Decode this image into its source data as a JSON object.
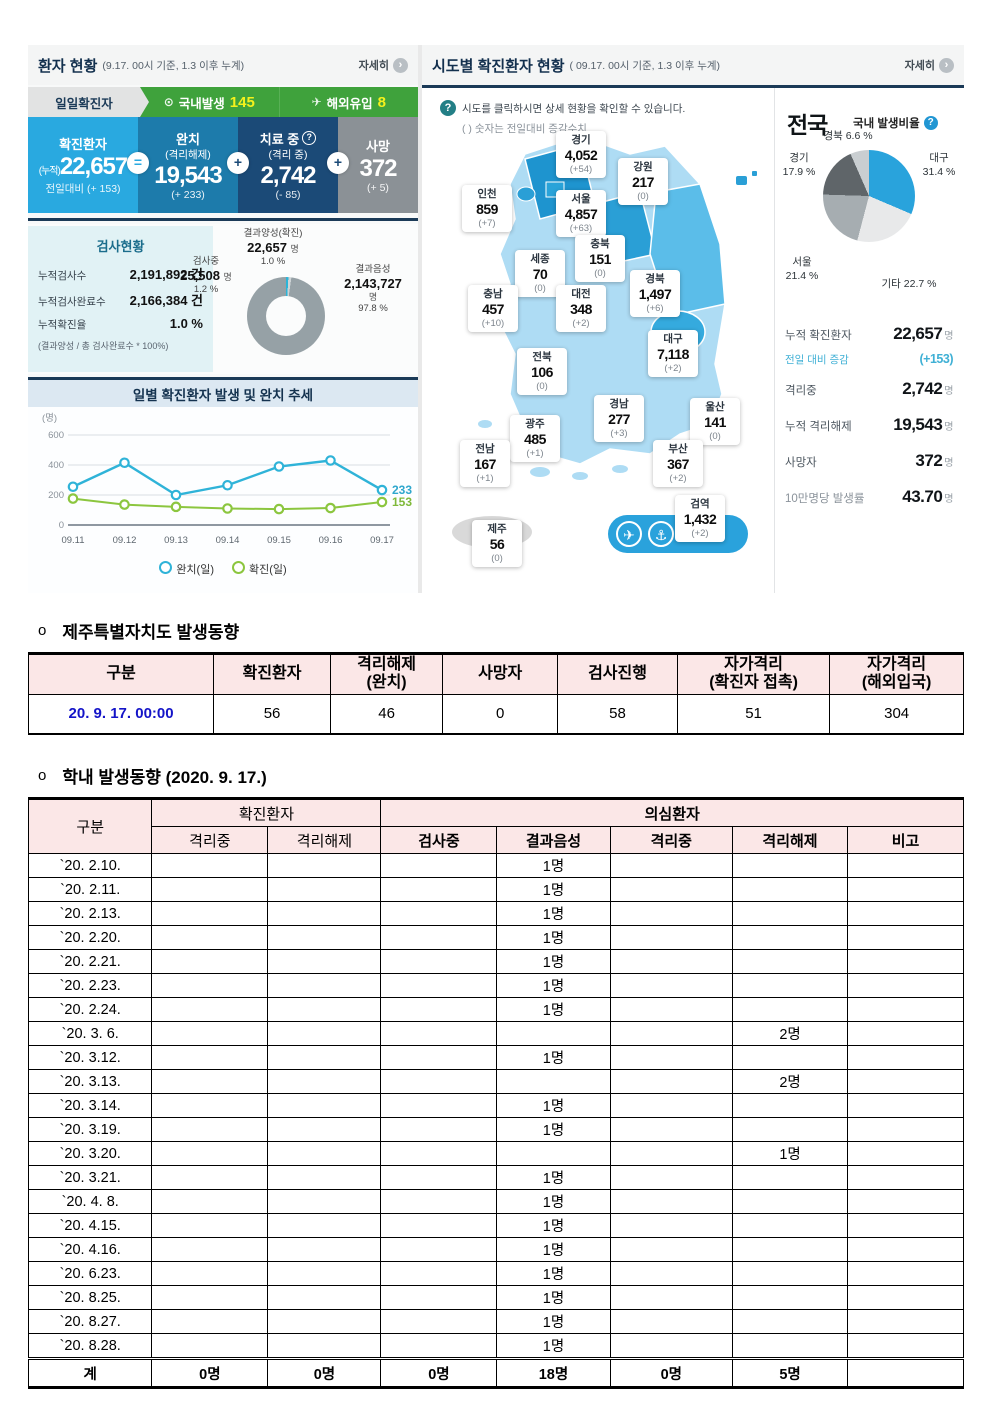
{
  "left_panel": {
    "title": "환자 현황",
    "title_note": "(9.17. 00시 기준, 1.3 이후 누계)",
    "more_label": "자세히",
    "icons": {
      "more_arrow": "›",
      "pin": "⊙",
      "plane": "✈",
      "help": "?"
    },
    "tabs": {
      "daily": "일일확진자",
      "domestic_label": "국내발생",
      "domestic_value": "145",
      "imported_label": "해외유입",
      "imported_value": "8"
    },
    "cards": {
      "confirmed": {
        "title": "확진환자",
        "prefix": "(누적)",
        "value": "22,657",
        "delta": "전일대비 (+ 153)"
      },
      "recovered": {
        "title": "완치",
        "subtitle": "(격리해제)",
        "value": "19,543",
        "delta": "(+ 233)"
      },
      "treating": {
        "title": "치료 중",
        "help": "?",
        "subtitle": "(격리 중)",
        "value": "2,742",
        "delta": "(- 85)"
      },
      "deaths": {
        "title": "사망",
        "value": "372",
        "delta": "(+ 5)"
      },
      "op_equals": "=",
      "op_plus": "+"
    },
    "tests": {
      "title": "검사현황",
      "rows": [
        {
          "label": "누적검사수",
          "value": "2,191,892 건"
        },
        {
          "label": "누적검사완료수",
          "value": "2,166,384 건"
        },
        {
          "label": "누적확진율",
          "value": "1.0 %"
        }
      ],
      "note": "(결과양성 / 총 검사완료수 * 100%)",
      "donut": {
        "positive_label": "결과양성(확진)",
        "positive_value": "22,657",
        "positive_unit": "명",
        "positive_pct": "1.0 %",
        "testing_label": "검사중",
        "testing_value": "25,508",
        "testing_unit": "명",
        "testing_pct": "1.2 %",
        "negative_label": "결과음성",
        "negative_value": "2,143,727",
        "negative_unit": "명",
        "negative_pct": "97.8 %"
      }
    },
    "trend": {
      "title": "일별 확진환자 발생 및 완치 추세",
      "unit": "(명)",
      "y_ticks": [
        "600",
        "400",
        "200",
        "0"
      ],
      "x_labels": [
        "09.11",
        "09.12",
        "09.13",
        "09.14",
        "09.15",
        "09.16",
        "09.17"
      ],
      "recovered_end_label": "233",
      "confirmed_end_label": "153",
      "legend_recovered": "완치(일)",
      "legend_confirmed": "확진(일)"
    }
  },
  "map_panel": {
    "title": "시도별 확진환자 현황",
    "title_note": "( 09.17. 00시 기준, 1.3 이후 누계)",
    "more_label": "자세히",
    "help_text": "시도를 클릭하시면 상세 현황을 확인할 수 있습니다.",
    "help_note": "( ) 숫자는 전일대비 증감수치",
    "regions": [
      {
        "name": "경기",
        "value": "4,052",
        "delta": "(+54)"
      },
      {
        "name": "강원",
        "value": "217",
        "delta": "(0)"
      },
      {
        "name": "인천",
        "value": "859",
        "delta": "(+7)"
      },
      {
        "name": "서울",
        "value": "4,857",
        "delta": "(+63)"
      },
      {
        "name": "충북",
        "value": "151",
        "delta": "(0)"
      },
      {
        "name": "세종",
        "value": "70",
        "delta": "(0)"
      },
      {
        "name": "경북",
        "value": "1,497",
        "delta": "(+6)"
      },
      {
        "name": "충남",
        "value": "457",
        "delta": "(+10)"
      },
      {
        "name": "대전",
        "value": "348",
        "delta": "(+2)"
      },
      {
        "name": "대구",
        "value": "7,118",
        "delta": "(+2)"
      },
      {
        "name": "전북",
        "value": "106",
        "delta": "(0)"
      },
      {
        "name": "경남",
        "value": "277",
        "delta": "(+3)"
      },
      {
        "name": "울산",
        "value": "141",
        "delta": "(0)"
      },
      {
        "name": "광주",
        "value": "485",
        "delta": "(+1)"
      },
      {
        "name": "전남",
        "value": "167",
        "delta": "(+1)"
      },
      {
        "name": "부산",
        "value": "367",
        "delta": "(+2)"
      },
      {
        "name": "제주",
        "value": "56",
        "delta": "(0)"
      },
      {
        "name": "검역",
        "value": "1,432",
        "delta": "(+2)"
      }
    ]
  },
  "national_panel": {
    "title": "전국",
    "ratio_label": "국내 발생비율",
    "pie_labels": [
      {
        "name": "경북",
        "pct": "6.6 %"
      },
      {
        "name": "경기",
        "pct": "17.9 %"
      },
      {
        "name": "대구",
        "pct": "31.4 %"
      },
      {
        "name": "서울",
        "pct": "21.4 %"
      },
      {
        "name": "기타",
        "pct": "22.7 %"
      }
    ],
    "stats": [
      {
        "label": "누적 확진환자",
        "value": "22,657",
        "unit": "명"
      },
      {
        "label": "전일 대비 증감",
        "value": "(+153)",
        "unit": ""
      },
      {
        "label": "격리중",
        "value": "2,742",
        "unit": "명"
      },
      {
        "label": "누적 격리해제",
        "value": "19,543",
        "unit": "명"
      },
      {
        "label": "사망자",
        "value": "372",
        "unit": "명"
      },
      {
        "label": "10만명당 발생률",
        "value": "43.70",
        "unit": "명"
      }
    ]
  },
  "jeju_section": {
    "marker": "o",
    "title": "제주특별자치도 발생동향",
    "headers": [
      "구분",
      "확진환자",
      "격리해제\n(완치)",
      "사망자",
      "검사진행",
      "자가격리\n(확진자 접촉)",
      "자가격리\n(해외입국)"
    ],
    "row": {
      "date": "20. 9. 17. 00:00",
      "values": [
        "56",
        "46",
        "0",
        "58",
        "51",
        "304"
      ]
    }
  },
  "school_section": {
    "marker": "o",
    "title": "학내 발생동향 (2020. 9. 17.)",
    "header": {
      "col_group": "구분",
      "confirmed_group": "확진환자",
      "suspected_group": "의심환자",
      "sub": [
        "격리중",
        "격리해제",
        "검사중",
        "결과음성",
        "격리중",
        "격리해제",
        "비고"
      ]
    },
    "rows": [
      {
        "cells": [
          "`20. 2.10.",
          "",
          "",
          "",
          "1명",
          "",
          "",
          ""
        ]
      },
      {
        "cells": [
          "`20. 2.11.",
          "",
          "",
          "",
          "1명",
          "",
          "",
          ""
        ]
      },
      {
        "cells": [
          "`20. 2.13.",
          "",
          "",
          "",
          "1명",
          "",
          "",
          ""
        ]
      },
      {
        "cells": [
          "`20. 2.20.",
          "",
          "",
          "",
          "1명",
          "",
          "",
          ""
        ]
      },
      {
        "cells": [
          "`20. 2.21.",
          "",
          "",
          "",
          "1명",
          "",
          "",
          ""
        ]
      },
      {
        "cells": [
          "`20. 2.23.",
          "",
          "",
          "",
          "1명",
          "",
          "",
          ""
        ]
      },
      {
        "cells": [
          "`20. 2.24.",
          "",
          "",
          "",
          "1명",
          "",
          "",
          ""
        ]
      },
      {
        "cells": [
          "`20. 3. 6.",
          "",
          "",
          "",
          "",
          "",
          "2명",
          ""
        ]
      },
      {
        "cells": [
          "`20. 3.12.",
          "",
          "",
          "",
          "1명",
          "",
          "",
          ""
        ]
      },
      {
        "cells": [
          "`20. 3.13.",
          "",
          "",
          "",
          "",
          "",
          "2명",
          ""
        ]
      },
      {
        "cells": [
          "`20. 3.14.",
          "",
          "",
          "",
          "1명",
          "",
          "",
          ""
        ]
      },
      {
        "cells": [
          "`20. 3.19.",
          "",
          "",
          "",
          "1명",
          "",
          "",
          ""
        ]
      },
      {
        "cells": [
          "`20. 3.20.",
          "",
          "",
          "",
          "",
          "",
          "1명",
          ""
        ]
      },
      {
        "cells": [
          "`20. 3.21.",
          "",
          "",
          "",
          "1명",
          "",
          "",
          ""
        ]
      },
      {
        "cells": [
          "`20. 4. 8.",
          "",
          "",
          "",
          "1명",
          "",
          "",
          ""
        ]
      },
      {
        "cells": [
          "`20. 4.15.",
          "",
          "",
          "",
          "1명",
          "",
          "",
          ""
        ]
      },
      {
        "cells": [
          "`20. 4.16.",
          "",
          "",
          "",
          "1명",
          "",
          "",
          ""
        ]
      },
      {
        "cells": [
          "`20. 6.23.",
          "",
          "",
          "",
          "1명",
          "",
          "",
          ""
        ]
      },
      {
        "cells": [
          "`20. 8.25.",
          "",
          "",
          "",
          "1명",
          "",
          "",
          ""
        ]
      },
      {
        "cells": [
          "`20. 8.27.",
          "",
          "",
          "",
          "1명",
          "",
          "",
          ""
        ]
      },
      {
        "cells": [
          "`20. 8.28.",
          "",
          "",
          "",
          "1명",
          "",
          "",
          ""
        ]
      },
      {
        "cells": [
          "계",
          "0명",
          "0명",
          "0명",
          "18명",
          "0명",
          "5명",
          ""
        ],
        "bold": true
      }
    ]
  },
  "chart_data": [
    {
      "type": "line",
      "title": "일별 확진환자 발생 및 완치 추세",
      "x": [
        "09.11",
        "09.12",
        "09.13",
        "09.14",
        "09.15",
        "09.16",
        "09.17"
      ],
      "series": [
        {
          "name": "완치(일)",
          "values": [
            255,
            415,
            200,
            265,
            390,
            430,
            233
          ]
        },
        {
          "name": "확진(일)",
          "values": [
            176,
            136,
            121,
            110,
            106,
            113,
            153
          ]
        }
      ],
      "ylabel": "(명)",
      "ylim": [
        0,
        600
      ],
      "grid": true,
      "legend_position": "bottom"
    },
    {
      "type": "pie",
      "title": "검사현황",
      "slices": [
        {
          "name": "결과양성(확진)",
          "value": 22657,
          "pct": 1.0,
          "color": "#2bb5d8"
        },
        {
          "name": "검사중",
          "value": 25508,
          "pct": 1.2,
          "color": "#ced4d6"
        },
        {
          "name": "결과음성",
          "value": 2143727,
          "pct": 97.8,
          "color": "#96a1a6"
        }
      ]
    },
    {
      "type": "pie",
      "title": "국내 발생비율",
      "slices": [
        {
          "name": "대구",
          "pct": 31.4,
          "color": "#29a3dc"
        },
        {
          "name": "기타",
          "pct": 22.7,
          "color": "#e8e9ea"
        },
        {
          "name": "서울",
          "pct": 21.4,
          "color": "#a6adb1"
        },
        {
          "name": "경기",
          "pct": 17.9,
          "color": "#5f6569"
        },
        {
          "name": "경북",
          "pct": 6.6,
          "color": "#c9ced1"
        }
      ]
    }
  ],
  "colors": {
    "accent_blue": "#29a9e0",
    "navy": "#1b3a57",
    "green": "#3fa23c",
    "yellow": "#f4f11c",
    "pink_header": "#fbe7e7",
    "date_blue": "#1414c8"
  }
}
